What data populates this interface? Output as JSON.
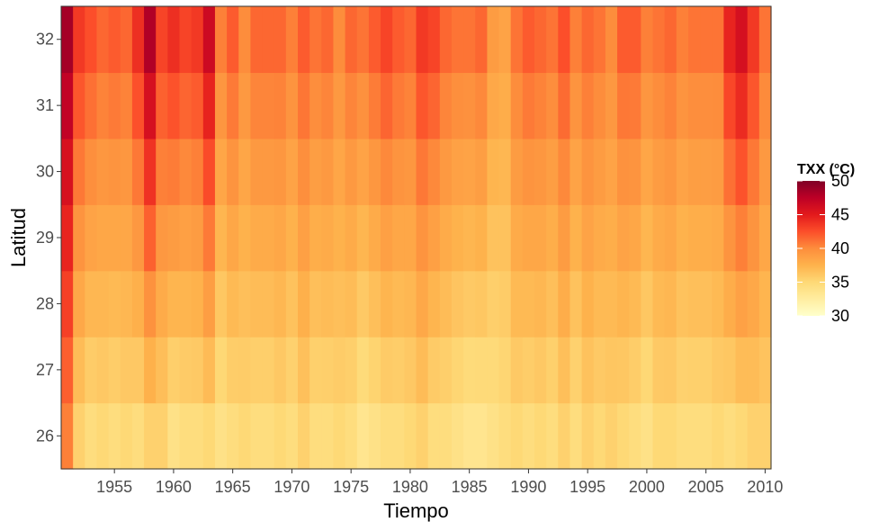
{
  "chart_data": {
    "type": "heatmap",
    "title": "",
    "xlabel": "Tiempo",
    "ylabel": "Latitud",
    "xlim": [
      1950.5,
      2010.5
    ],
    "ylim": [
      25.5,
      32.5
    ],
    "x_ticks": [
      1955,
      1960,
      1965,
      1970,
      1975,
      1980,
      1985,
      1990,
      1995,
      2000,
      2005,
      2010
    ],
    "x_tick_labels": [
      "1955",
      "1960",
      "1965",
      "1970",
      "1975",
      "1980",
      "1985",
      "1990",
      "1995",
      "2000",
      "2005",
      "2010"
    ],
    "y_ticks": [
      26,
      27,
      28,
      29,
      30,
      31,
      32
    ],
    "y_tick_labels": [
      "26",
      "27",
      "28",
      "29",
      "30",
      "31",
      "32"
    ],
    "grid": false,
    "legend": {
      "title": "TXX (°C)",
      "placement": "right",
      "min": 30,
      "max": 50,
      "ticks": [
        30,
        35,
        40,
        45,
        50
      ],
      "tick_labels": [
        "30",
        "35",
        "40",
        "45",
        "50"
      ],
      "colors": [
        "#ffffcc",
        "#ffeda0",
        "#fed976",
        "#feb24c",
        "#fd8d3c",
        "#fc4e2a",
        "#e31a1c",
        "#bd0026",
        "#800026"
      ]
    },
    "years": [
      1951,
      1952,
      1953,
      1954,
      1955,
      1956,
      1957,
      1958,
      1959,
      1960,
      1961,
      1962,
      1963,
      1964,
      1965,
      1966,
      1967,
      1968,
      1969,
      1970,
      1971,
      1972,
      1973,
      1974,
      1975,
      1976,
      1977,
      1978,
      1979,
      1980,
      1981,
      1982,
      1983,
      1984,
      1985,
      1986,
      1987,
      1988,
      1989,
      1990,
      1991,
      1992,
      1993,
      1994,
      1995,
      1996,
      1997,
      1998,
      1999,
      2000,
      2001,
      2002,
      2003,
      2004,
      2005,
      2006,
      2007,
      2008,
      2009,
      2010
    ],
    "latitudes": [
      25.5,
      26.5,
      27.5,
      28.5,
      29.5,
      30.5,
      31.5,
      32.5
    ],
    "values_south_26": [
      40.5,
      35.5,
      34.5,
      35,
      34.5,
      35,
      34.5,
      35.5,
      35.5,
      34,
      34.5,
      34.5,
      35,
      34,
      34.5,
      35,
      34.5,
      34.5,
      35,
      34.5,
      35.5,
      34.5,
      34.5,
      35,
      34.5,
      33.5,
      34,
      34.5,
      34.5,
      35,
      35.5,
      34.5,
      34.5,
      34,
      33.5,
      33.5,
      34,
      34.5,
      35,
      34.5,
      35,
      34.5,
      35.5,
      34.5,
      35.5,
      35,
      35.5,
      35,
      34.5,
      34,
      35,
      35,
      34.5,
      34.5,
      34.5,
      35,
      34.5,
      35,
      35.5,
      35.5
    ],
    "values_north_32": [
      48.5,
      43.5,
      42.5,
      41.5,
      42,
      41.5,
      44,
      48,
      43,
      44,
      43,
      43.5,
      46.5,
      40.5,
      42,
      40,
      41.5,
      41.5,
      41.5,
      40.5,
      42,
      41,
      41.5,
      40,
      41.5,
      41,
      42,
      43,
      42,
      41.5,
      43.5,
      43,
      41.5,
      41,
      41,
      41.5,
      39,
      38.5,
      41,
      42,
      41.5,
      41,
      42.5,
      40.5,
      41.5,
      41,
      40,
      42,
      42,
      40.5,
      41,
      41.5,
      40.5,
      41,
      41,
      41,
      44.5,
      46,
      43.5,
      41
    ]
  }
}
